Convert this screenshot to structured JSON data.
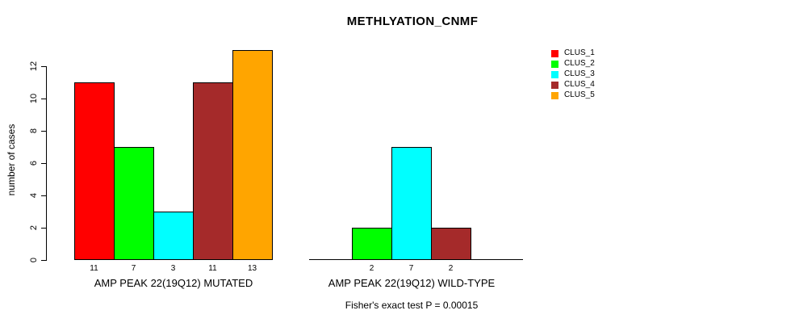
{
  "title": "METHLYATION_CNMF",
  "y_axis": {
    "label": "number of cases",
    "ticks": [
      "0",
      "2",
      "4",
      "6",
      "8",
      "10",
      "12"
    ]
  },
  "legend": {
    "items": [
      {
        "label": "CLUS_1",
        "color": "#FF0000"
      },
      {
        "label": "CLUS_2",
        "color": "#00FF00"
      },
      {
        "label": "CLUS_3",
        "color": "#00FFFF"
      },
      {
        "label": "CLUS_4",
        "color": "#A52A2A"
      },
      {
        "label": "CLUS_5",
        "color": "#FFA500"
      }
    ]
  },
  "footer": "Fisher's exact test P = 0.00015",
  "chart_data": {
    "type": "bar",
    "title": "METHLYATION_CNMF",
    "ylabel": "number of cases",
    "ylim": [
      0,
      13
    ],
    "yticks": [
      0,
      2,
      4,
      6,
      8,
      10,
      12
    ],
    "grid": false,
    "legend_position": "top-right",
    "clusters": [
      "CLUS_1",
      "CLUS_2",
      "CLUS_3",
      "CLUS_4",
      "CLUS_5"
    ],
    "colors": [
      "#FF0000",
      "#00FF00",
      "#00FFFF",
      "#A52A2A",
      "#FFA500"
    ],
    "bar_border_color": "#000000",
    "groups": [
      {
        "label": "AMP PEAK 22(19Q12) MUTATED",
        "values": [
          11,
          7,
          3,
          11,
          13
        ],
        "bar_labels": [
          "11",
          "7",
          "3",
          "11",
          "13"
        ],
        "baseline_drawn": false
      },
      {
        "label": "AMP PEAK 22(19Q12) WILD-TYPE",
        "values": [
          0,
          2,
          7,
          2,
          0
        ],
        "bar_labels": [
          "",
          "2",
          "7",
          "2",
          ""
        ],
        "baseline_drawn": true
      }
    ],
    "annotation": "Fisher's exact test P = 0.00015"
  }
}
